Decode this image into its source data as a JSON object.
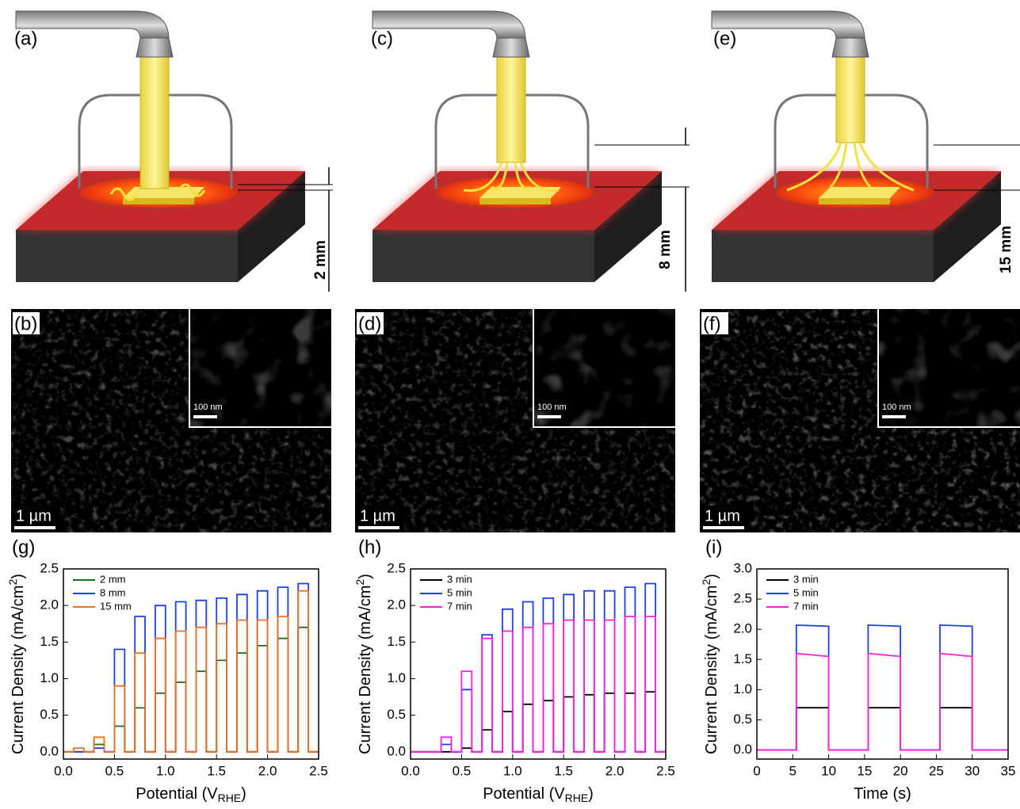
{
  "figure": {
    "panel_labels": [
      "(a)",
      "(b)",
      "(c)",
      "(d)",
      "(e)",
      "(f)",
      "(g)",
      "(h)",
      "(i)"
    ],
    "distances": [
      "2 mm",
      "8 mm",
      "15 mm"
    ],
    "scale_bars": [
      "1 µm",
      "1 µm",
      "1 µm"
    ],
    "inset_scale_bars": [
      "100 nm",
      "100 nm",
      "100 nm"
    ]
  },
  "chart_data": [
    {
      "type": "line",
      "x_label": [
        "Potential (V",
        "RHE",
        ")"
      ],
      "y_label": [
        "Current Density (mA/cm",
        "2",
        ")"
      ],
      "xlim": [
        0,
        2.5
      ],
      "ylim": [
        -0.1,
        2.5
      ],
      "xticks": [
        {
          "value": 0,
          "label": "0.0"
        },
        0.5,
        {
          "value": 1,
          "label": "1.0"
        },
        1.5,
        {
          "value": 2,
          "label": "2.0"
        },
        2.5
      ],
      "yticks": [
        {
          "value": 0,
          "label": "0.0"
        },
        0.5,
        {
          "value": 1,
          "label": "1.0"
        },
        1.5,
        {
          "value": 2,
          "label": "2.0"
        },
        2.5
      ],
      "x": [
        0,
        0.1,
        0.1,
        0.2,
        0.2,
        0.3,
        0.3,
        0.4,
        0.4,
        0.5,
        0.5,
        0.6,
        0.6,
        0.7,
        0.7,
        0.8,
        0.8,
        0.9,
        0.9,
        1.0,
        1.0,
        1.1,
        1.1,
        1.2,
        1.2,
        1.3,
        1.3,
        1.4,
        1.4,
        1.5,
        1.5,
        1.6,
        1.6,
        1.7,
        1.7,
        1.8,
        1.8,
        1.9,
        1.9,
        2.0,
        2.0,
        2.1,
        2.1,
        2.2,
        2.2,
        2.3,
        2.3,
        2.4,
        2.4,
        2.5
      ],
      "series": [
        {
          "name": "2 mm",
          "color": "#1a6e1a",
          "values": [
            0,
            0,
            0,
            0,
            0,
            0,
            0.1,
            0.1,
            0,
            0,
            0.35,
            0.35,
            0,
            0,
            0.6,
            0.6,
            0,
            0,
            0.8,
            0.8,
            0,
            0,
            0.95,
            0.95,
            0,
            0,
            1.1,
            1.1,
            0,
            0,
            1.25,
            1.25,
            0,
            0,
            1.35,
            1.35,
            0,
            0,
            1.45,
            1.45,
            0,
            0,
            1.55,
            1.55,
            0,
            0,
            1.7,
            1.7,
            0,
            0
          ]
        },
        {
          "name": "8 mm",
          "color": "#1f3fe0",
          "values": [
            0,
            0,
            0,
            0,
            0,
            0,
            0.05,
            0.05,
            0,
            0,
            1.4,
            1.4,
            0,
            0,
            1.85,
            1.85,
            0,
            0,
            2.0,
            2.0,
            0,
            0,
            2.05,
            2.05,
            0,
            0,
            2.07,
            2.07,
            0,
            0,
            2.1,
            2.1,
            0,
            0,
            2.15,
            2.15,
            0,
            0,
            2.2,
            2.2,
            0,
            0,
            2.25,
            2.25,
            0,
            0,
            2.3,
            2.3,
            0,
            0
          ]
        },
        {
          "name": "15 mm",
          "color": "#f07020",
          "values": [
            0,
            0,
            0.05,
            0.05,
            0,
            0,
            0.2,
            0.2,
            0,
            0,
            0.9,
            0.9,
            0,
            0,
            1.35,
            1.35,
            0,
            0,
            1.55,
            1.55,
            0,
            0,
            1.65,
            1.65,
            0,
            0,
            1.7,
            1.7,
            0,
            0,
            1.75,
            1.75,
            0,
            0,
            1.8,
            1.8,
            0,
            0,
            1.8,
            1.8,
            0,
            0,
            1.85,
            1.85,
            0,
            0,
            2.2,
            2.2,
            0,
            0
          ]
        }
      ]
    },
    {
      "type": "line",
      "x_label": [
        "Potential (V",
        "RHE",
        ")"
      ],
      "y_label": [
        "Current Density (mA/cm",
        "2",
        ")"
      ],
      "xlim": [
        0,
        2.5
      ],
      "ylim": [
        -0.1,
        2.5
      ],
      "xticks": [
        {
          "value": 0,
          "label": "0.0"
        },
        0.5,
        {
          "value": 1,
          "label": "1.0"
        },
        1.5,
        {
          "value": 2,
          "label": "2.0"
        },
        2.5
      ],
      "yticks": [
        {
          "value": 0,
          "label": "0.0"
        },
        0.5,
        {
          "value": 1,
          "label": "1.0"
        },
        1.5,
        {
          "value": 2,
          "label": "2.0"
        },
        2.5
      ],
      "x": [
        0,
        0.1,
        0.1,
        0.2,
        0.2,
        0.3,
        0.3,
        0.4,
        0.4,
        0.5,
        0.5,
        0.6,
        0.6,
        0.7,
        0.7,
        0.8,
        0.8,
        0.9,
        0.9,
        1.0,
        1.0,
        1.1,
        1.1,
        1.2,
        1.2,
        1.3,
        1.3,
        1.4,
        1.4,
        1.5,
        1.5,
        1.6,
        1.6,
        1.7,
        1.7,
        1.8,
        1.8,
        1.9,
        1.9,
        2.0,
        2.0,
        2.1,
        2.1,
        2.2,
        2.2,
        2.3,
        2.3,
        2.4,
        2.4,
        2.5
      ],
      "series": [
        {
          "name": "3 min",
          "color": "#000000",
          "values": [
            0,
            0,
            0,
            0,
            0,
            0,
            0,
            0,
            0,
            0,
            0.05,
            0.05,
            0,
            0,
            0.3,
            0.3,
            0,
            0,
            0.55,
            0.55,
            0,
            0,
            0.65,
            0.65,
            0,
            0,
            0.7,
            0.7,
            0,
            0,
            0.75,
            0.75,
            0,
            0,
            0.78,
            0.78,
            0,
            0,
            0.8,
            0.8,
            0,
            0,
            0.8,
            0.8,
            0,
            0,
            0.82,
            0.82,
            0,
            0
          ]
        },
        {
          "name": "5 min",
          "color": "#1f3fe0",
          "values": [
            0,
            0,
            0,
            0,
            0,
            0,
            0.1,
            0.1,
            0,
            0,
            0.85,
            0.85,
            0,
            0,
            1.6,
            1.6,
            0,
            0,
            1.95,
            1.95,
            0,
            0,
            2.05,
            2.05,
            0,
            0,
            2.1,
            2.1,
            0,
            0,
            2.15,
            2.15,
            0,
            0,
            2.2,
            2.2,
            0,
            0,
            2.2,
            2.2,
            0,
            0,
            2.25,
            2.25,
            0,
            0,
            2.3,
            2.3,
            0,
            0
          ]
        },
        {
          "name": "7 min",
          "color": "#ff20e0",
          "values": [
            0,
            0,
            0,
            0,
            0,
            0,
            0.2,
            0.2,
            0,
            0,
            1.1,
            1.1,
            0,
            0,
            1.55,
            1.55,
            0,
            0,
            1.65,
            1.65,
            0,
            0,
            1.7,
            1.7,
            0,
            0,
            1.75,
            1.75,
            0,
            0,
            1.8,
            1.8,
            0,
            0,
            1.8,
            1.8,
            0,
            0,
            1.8,
            1.8,
            0,
            0,
            1.85,
            1.85,
            0,
            0,
            1.85,
            1.85,
            0,
            0
          ]
        }
      ]
    },
    {
      "type": "line",
      "x_label": [
        "Time (s)"
      ],
      "y_label": [
        "Current Density (mA/cm",
        "2",
        ")"
      ],
      "xlim": [
        0,
        35
      ],
      "ylim": [
        -0.15,
        3.0
      ],
      "xticks": [
        0,
        5,
        10,
        15,
        20,
        25,
        30,
        35
      ],
      "yticks": [
        {
          "value": 0,
          "label": "0.0"
        },
        0.5,
        {
          "value": 1,
          "label": "1.0"
        },
        1.5,
        {
          "value": 2,
          "label": "2.0"
        },
        2.5,
        {
          "value": 3,
          "label": "3.0"
        }
      ],
      "x": [
        0,
        5.5,
        5.5,
        10,
        10,
        15.5,
        15.5,
        20,
        20,
        25.5,
        25.5,
        30,
        30,
        35
      ],
      "series": [
        {
          "name": "3 min",
          "color": "#000000",
          "values": [
            0,
            0,
            0.7,
            0.7,
            0,
            0,
            0.7,
            0.7,
            0,
            0,
            0.7,
            0.7,
            0,
            0
          ]
        },
        {
          "name": "5 min",
          "color": "#1f3fe0",
          "values": [
            0,
            0,
            2.07,
            2.05,
            0,
            0,
            2.07,
            2.05,
            0,
            0,
            2.07,
            2.05,
            0,
            0
          ]
        },
        {
          "name": "7 min",
          "color": "#ff20e0",
          "values": [
            0,
            0,
            1.6,
            1.55,
            0,
            0,
            1.6,
            1.55,
            0,
            0,
            1.6,
            1.55,
            0,
            0
          ]
        }
      ]
    }
  ]
}
